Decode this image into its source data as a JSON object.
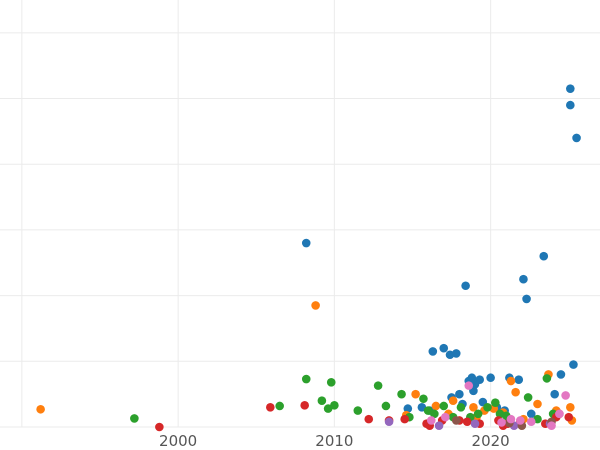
{
  "chart_data": {
    "type": "scatter",
    "title": "",
    "xlabel": "",
    "ylabel": "",
    "xlim": [
      1988.6,
      2027.0
    ],
    "ylim": [
      0,
      6.5
    ],
    "grid": true,
    "legend": "none",
    "x_ticks": [
      {
        "value": 2000,
        "label": "2000"
      },
      {
        "value": 2010,
        "label": "2010"
      },
      {
        "value": 2020,
        "label": "2020"
      }
    ],
    "series": [
      {
        "color": "#1f77b4",
        "points": [
          [
            2008.2,
            2.8
          ],
          [
            2016.3,
            1.15
          ],
          [
            2017.0,
            1.2
          ],
          [
            2017.4,
            1.1
          ],
          [
            2017.8,
            1.12
          ],
          [
            2018.4,
            2.15
          ],
          [
            2018.6,
            0.7
          ],
          [
            2018.8,
            0.75
          ],
          [
            2019.3,
            0.72
          ],
          [
            2020.0,
            0.75
          ],
          [
            2021.2,
            0.75
          ],
          [
            2021.8,
            0.72
          ],
          [
            2022.1,
            2.25
          ],
          [
            2022.3,
            1.95
          ],
          [
            2023.4,
            2.6
          ],
          [
            2024.1,
            0.5
          ],
          [
            2024.5,
            0.8
          ],
          [
            2025.1,
            5.15
          ],
          [
            2025.1,
            4.9
          ],
          [
            2025.5,
            4.4
          ],
          [
            2025.3,
            0.95
          ],
          [
            2017.5,
            0.45
          ],
          [
            2018.0,
            0.5
          ],
          [
            2018.9,
            0.55
          ],
          [
            2019.5,
            0.38
          ],
          [
            2020.4,
            0.3
          ],
          [
            2015.6,
            0.3
          ],
          [
            2016.1,
            0.25
          ],
          [
            2014.7,
            0.28
          ],
          [
            2018.2,
            0.35
          ],
          [
            2020.9,
            0.25
          ],
          [
            2022.6,
            0.2
          ],
          [
            2019.0,
            0.65
          ]
        ]
      },
      {
        "color": "#ff7f0e",
        "points": [
          [
            1991.2,
            0.27
          ],
          [
            2008.8,
            1.85
          ],
          [
            2015.2,
            0.5
          ],
          [
            2016.5,
            0.32
          ],
          [
            2017.6,
            0.4
          ],
          [
            2018.9,
            0.3
          ],
          [
            2019.6,
            0.25
          ],
          [
            2020.2,
            0.28
          ],
          [
            2020.8,
            0.22
          ],
          [
            2021.3,
            0.7
          ],
          [
            2021.6,
            0.53
          ],
          [
            2023.0,
            0.35
          ],
          [
            2023.7,
            0.8
          ],
          [
            2024.2,
            0.25
          ],
          [
            2025.1,
            0.3
          ],
          [
            2025.2,
            0.1
          ],
          [
            2017.3,
            0.2
          ],
          [
            2019.1,
            0.15
          ],
          [
            2014.6,
            0.18
          ],
          [
            2022.1,
            0.12
          ]
        ]
      },
      {
        "color": "#2ca02c",
        "points": [
          [
            1997.2,
            0.13
          ],
          [
            2006.5,
            0.32
          ],
          [
            2008.2,
            0.73
          ],
          [
            2009.2,
            0.4
          ],
          [
            2009.6,
            0.28
          ],
          [
            2009.8,
            0.68
          ],
          [
            2010.0,
            0.33
          ],
          [
            2011.5,
            0.25
          ],
          [
            2012.8,
            0.63
          ],
          [
            2013.3,
            0.32
          ],
          [
            2014.3,
            0.5
          ],
          [
            2014.8,
            0.15
          ],
          [
            2015.7,
            0.43
          ],
          [
            2016.0,
            0.25
          ],
          [
            2016.4,
            0.2
          ],
          [
            2017.0,
            0.32
          ],
          [
            2017.6,
            0.15
          ],
          [
            2018.1,
            0.3
          ],
          [
            2019.2,
            0.2
          ],
          [
            2019.8,
            0.3
          ],
          [
            2020.3,
            0.37
          ],
          [
            2020.6,
            0.2
          ],
          [
            2021.0,
            0.17
          ],
          [
            2022.4,
            0.45
          ],
          [
            2023.0,
            0.12
          ],
          [
            2023.6,
            0.74
          ],
          [
            2024.0,
            0.2
          ],
          [
            2018.7,
            0.15
          ]
        ]
      },
      {
        "color": "#d62728",
        "points": [
          [
            1998.8,
            0.0
          ],
          [
            2005.9,
            0.3
          ],
          [
            2008.1,
            0.33
          ],
          [
            2012.2,
            0.12
          ],
          [
            2013.5,
            0.1
          ],
          [
            2014.5,
            0.12
          ],
          [
            2015.9,
            0.05
          ],
          [
            2016.1,
            0.02
          ],
          [
            2016.9,
            0.1
          ],
          [
            2018.0,
            0.1
          ],
          [
            2018.5,
            0.08
          ],
          [
            2019.3,
            0.05
          ],
          [
            2020.5,
            0.1
          ],
          [
            2021.1,
            0.05
          ],
          [
            2021.9,
            0.08
          ],
          [
            2023.5,
            0.05
          ],
          [
            2024.2,
            0.15
          ],
          [
            2024.4,
            0.2
          ],
          [
            2025.0,
            0.15
          ],
          [
            2020.8,
            0.02
          ]
        ]
      },
      {
        "color": "#9467bd",
        "points": [
          [
            2013.5,
            0.08
          ],
          [
            2016.7,
            0.02
          ],
          [
            2019.0,
            0.05
          ],
          [
            2021.5,
            0.02
          ],
          [
            2023.8,
            0.05
          ]
        ]
      },
      {
        "color": "#8c564b",
        "points": [
          [
            2017.8,
            0.1
          ],
          [
            2021.2,
            0.06
          ],
          [
            2022.0,
            0.02
          ],
          [
            2023.9,
            0.08
          ]
        ]
      },
      {
        "color": "#e377c2",
        "points": [
          [
            2017.1,
            0.15
          ],
          [
            2018.6,
            0.63
          ],
          [
            2021.3,
            0.12
          ],
          [
            2021.9,
            0.1
          ],
          [
            2022.6,
            0.08
          ],
          [
            2023.9,
            0.02
          ],
          [
            2024.4,
            0.2
          ],
          [
            2024.8,
            0.48
          ],
          [
            2020.7,
            0.07
          ],
          [
            2016.2,
            0.1
          ]
        ]
      }
    ]
  }
}
